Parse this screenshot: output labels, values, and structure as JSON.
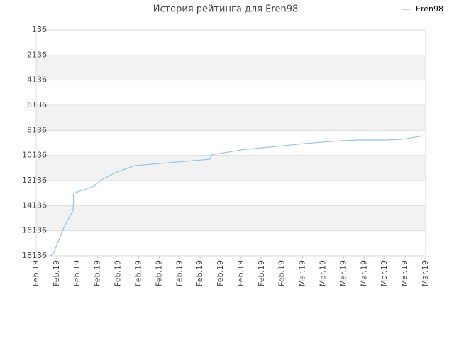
{
  "chart_data": {
    "type": "line",
    "title": "История рейтинга для Eren98",
    "x": [
      0.69,
      0.83,
      1.35,
      1.8,
      1.83,
      2.73,
      3.25,
      3.94,
      4.81,
      6.89,
      8.48,
      8.55,
      10.0,
      12.08,
      13.11,
      14.84,
      15.71,
      17.09,
      17.89,
      18.89
    ],
    "series": [
      {
        "name": "Eren98",
        "color": "#90c4ee",
        "values": [
          18136,
          18000,
          15870,
          14510,
          13150,
          12650,
          12020,
          11460,
          10950,
          10660,
          10440,
          10100,
          9700,
          9360,
          9190,
          8970,
          8910,
          8910,
          8850,
          8570
        ]
      }
    ],
    "xlim": [
      0,
      19
    ],
    "xticks": [
      {
        "value": 0,
        "label": "Feb.19"
      },
      {
        "value": 1,
        "label": "Feb.19"
      },
      {
        "value": 2,
        "label": "Feb.19"
      },
      {
        "value": 3,
        "label": "Feb.19"
      },
      {
        "value": 4,
        "label": "Feb.19"
      },
      {
        "value": 5,
        "label": "Feb.19"
      },
      {
        "value": 6,
        "label": "Feb.19"
      },
      {
        "value": 7,
        "label": "Feb.19"
      },
      {
        "value": 8,
        "label": "Feb.19"
      },
      {
        "value": 9,
        "label": "Feb.19"
      },
      {
        "value": 10,
        "label": "Feb.19"
      },
      {
        "value": 11,
        "label": "Feb.19"
      },
      {
        "value": 12,
        "label": "Feb.19"
      },
      {
        "value": 13,
        "label": "Mar.19"
      },
      {
        "value": 14,
        "label": "Mar.19"
      },
      {
        "value": 15,
        "label": "Mar.19"
      },
      {
        "value": 16,
        "label": "Mar.19"
      },
      {
        "value": 17,
        "label": "Mar.19"
      },
      {
        "value": 18,
        "label": "Mar.19"
      },
      {
        "value": 19,
        "label": "Mar.19"
      }
    ],
    "ylim": [
      136,
      18136
    ],
    "yticks": [
      136,
      2136,
      4136,
      6136,
      8136,
      10136,
      12136,
      14136,
      16136,
      18136
    ],
    "y_reversed": true,
    "grid": true,
    "legend": "top-right"
  }
}
